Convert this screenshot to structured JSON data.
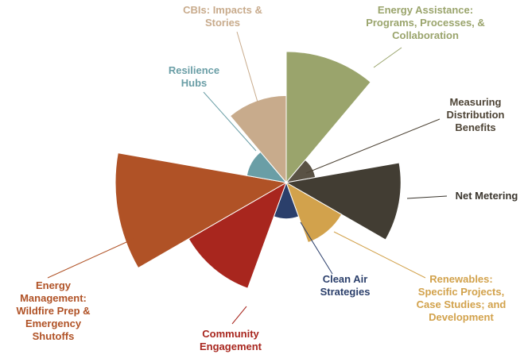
{
  "chart_data": {
    "type": "polar-area",
    "title": "",
    "series": [
      {
        "name": "Energy Assistance: Programs, Processes, & Collaboration",
        "lines": [
          "Energy Assistance:",
          "Programs, Processes, &",
          "Collaboration"
        ],
        "value": 5.9,
        "color": "#9aa46c",
        "label_color": "#9aa46c"
      },
      {
        "name": "Measuring Distribution Benefits",
        "lines": [
          "Measuring",
          "Distribution",
          "Benefits"
        ],
        "value": 0.3,
        "color": "#5a5245",
        "label_color": "#4e4436"
      },
      {
        "name": "Net Metering",
        "lines": [
          "Net Metering"
        ],
        "value": 4.5,
        "color": "#423d33",
        "label_color": "#3a352d"
      },
      {
        "name": "Renewables: Specific Projects, Case Studies; and Development",
        "lines": [
          "Renewables:",
          "Specific Projects,",
          "Case Studies; and",
          "Development"
        ],
        "value": 1.4,
        "color": "#d2a24c",
        "label_color": "#d2a24c"
      },
      {
        "name": "Clean Air Strategies",
        "lines": [
          "Clean Air",
          "Strategies"
        ],
        "value": 0.45,
        "color": "#2b3f6b",
        "label_color": "#2b3f6b"
      },
      {
        "name": "Community Engagement",
        "lines": [
          "Community",
          "Engagement"
        ],
        "value": 4.35,
        "color": "#a8261e",
        "label_color": "#a8261e"
      },
      {
        "name": "Energy Management: Wildfire Prep & Emergency Shutoffs",
        "lines": [
          "Energy",
          "Management:",
          "Wildfire Prep &",
          "Emergency",
          "Shutoffs"
        ],
        "value": 10.0,
        "color": "#b05226",
        "label_color": "#b05226"
      },
      {
        "name": "Resilience Hubs",
        "lines": [
          "Resilience",
          "Hubs"
        ],
        "value": 0.55,
        "color": "#6a9ea6",
        "label_color": "#6a9ea6"
      },
      {
        "name": "CBIs: Impacts & Stories",
        "lines": [
          "CBIs: Impacts &",
          "Stories"
        ],
        "value": 2.6,
        "color": "#c8ab8c",
        "label_color": "#c8ab8c"
      }
    ]
  }
}
